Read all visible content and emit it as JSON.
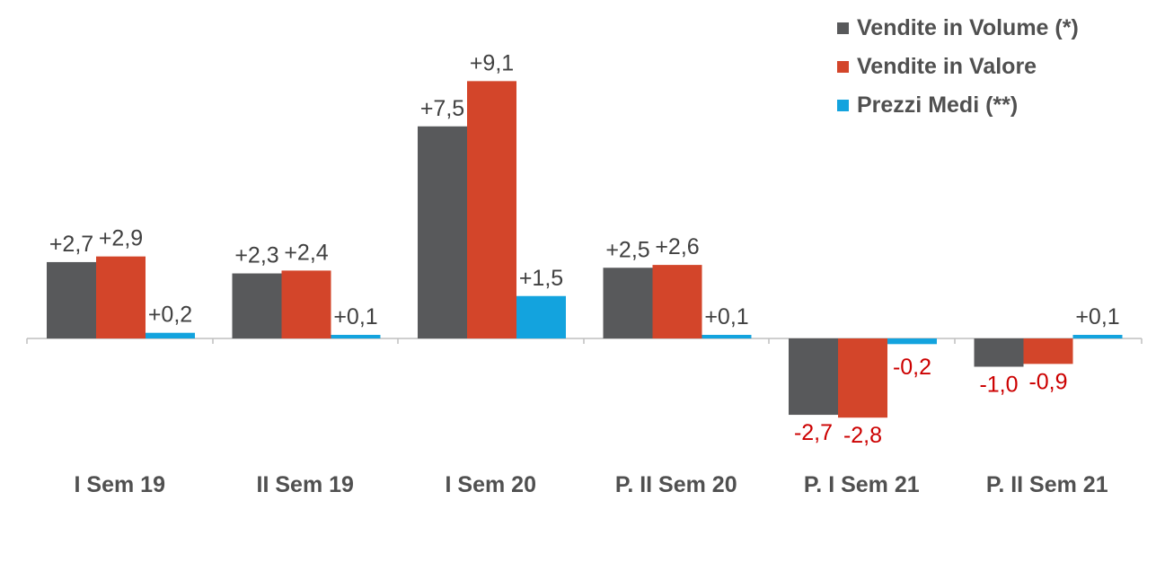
{
  "chart_data": {
    "type": "bar",
    "categories": [
      "I Sem 19",
      "II Sem 19",
      "I Sem 20",
      "P. II Sem 20",
      "P. I Sem 21",
      "P. II Sem 21"
    ],
    "series": [
      {
        "name": "Vendite in Volume (*)",
        "color": "#58595b",
        "values": [
          2.7,
          2.3,
          7.5,
          2.5,
          -2.7,
          -1.0
        ],
        "labels": [
          "+2,7",
          "+2,3",
          "+7,5",
          "+2,5",
          "-2,7",
          "-1,0"
        ]
      },
      {
        "name": "Vendite in Valore",
        "color": "#d3452a",
        "values": [
          2.9,
          2.4,
          9.1,
          2.6,
          -2.8,
          -0.9
        ],
        "labels": [
          "+2,9",
          "+2,4",
          "+9,1",
          "+2,6",
          "-2,8",
          "-0,9"
        ]
      },
      {
        "name": "Prezzi Medi (**)",
        "color": "#13a3de",
        "values": [
          0.2,
          0.1,
          1.5,
          0.1,
          -0.2,
          0.1
        ],
        "labels": [
          "+0,2",
          "+0,1",
          "+1,5",
          "+0,1",
          "-0,2",
          "+0,1"
        ]
      }
    ],
    "label_colors": {
      "positive": "#404040",
      "negative": "#cc0000"
    },
    "legend_position": "top-right",
    "grid": false,
    "title": "",
    "xlabel": "",
    "ylabel": ""
  }
}
